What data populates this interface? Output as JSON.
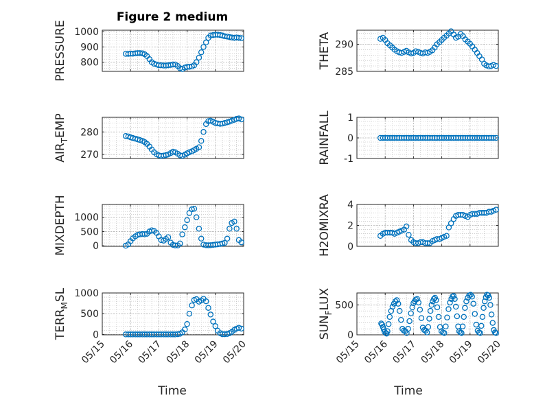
{
  "figure": {
    "title": "Figure 2 medium",
    "xlabel": "Time"
  },
  "colors": {
    "marker": "#0072BD",
    "axis": "#262626",
    "grid": "#b8b8b8"
  },
  "chart_data": [
    {
      "id": "pressure",
      "type": "scatter",
      "title": "Figure 2 medium",
      "ylabel": "PRESSURE",
      "ylabel_parts": [],
      "ylim": [
        740,
        1010
      ],
      "yticks": [
        800,
        900,
        1000
      ],
      "ytick_labels": [
        "800",
        "900",
        "1000"
      ],
      "xlim": [
        0,
        5
      ],
      "xticks": [
        0,
        1,
        2,
        3,
        4,
        5
      ],
      "xtick_labels": [],
      "x": [
        0.83,
        0.92,
        1.0,
        1.08,
        1.17,
        1.25,
        1.33,
        1.42,
        1.5,
        1.58,
        1.67,
        1.75,
        1.83,
        1.92,
        2.0,
        2.08,
        2.17,
        2.25,
        2.33,
        2.42,
        2.5,
        2.58,
        2.67,
        2.75,
        2.83,
        2.92,
        3.0,
        3.08,
        3.17,
        3.25,
        3.33,
        3.42,
        3.5,
        3.58,
        3.67,
        3.75,
        3.83,
        3.92,
        4.0,
        4.08,
        4.17,
        4.25,
        4.33,
        4.42,
        4.5,
        4.58,
        4.67,
        4.75,
        4.83,
        4.92
      ],
      "y": [
        855,
        855,
        856,
        856,
        858,
        860,
        860,
        858,
        852,
        840,
        820,
        800,
        790,
        785,
        780,
        780,
        778,
        778,
        780,
        782,
        785,
        785,
        775,
        760,
        755,
        765,
        770,
        770,
        772,
        780,
        800,
        830,
        865,
        900,
        930,
        960,
        975,
        978,
        980,
        980,
        978,
        975,
        970,
        968,
        965,
        962,
        960,
        962,
        960,
        958
      ]
    },
    {
      "id": "theta",
      "type": "scatter",
      "ylabel": "THETA",
      "ylabel_parts": [],
      "ylim": [
        285,
        292.6
      ],
      "yticks": [
        285,
        290
      ],
      "ytick_labels": [
        "285",
        "290"
      ],
      "xlim": [
        0,
        5
      ],
      "xticks": [
        0,
        1,
        2,
        3,
        4,
        5
      ],
      "xtick_labels": [],
      "x": [
        0.83,
        0.92,
        1.0,
        1.08,
        1.17,
        1.25,
        1.33,
        1.42,
        1.5,
        1.58,
        1.67,
        1.75,
        1.83,
        1.92,
        2.0,
        2.08,
        2.17,
        2.25,
        2.33,
        2.42,
        2.5,
        2.58,
        2.67,
        2.75,
        2.83,
        2.92,
        3.0,
        3.08,
        3.17,
        3.25,
        3.33,
        3.42,
        3.5,
        3.58,
        3.67,
        3.75,
        3.83,
        3.92,
        4.0,
        4.08,
        4.17,
        4.25,
        4.33,
        4.42,
        4.5,
        4.58,
        4.67,
        4.75,
        4.83,
        4.92
      ],
      "y": [
        291,
        291.2,
        290.8,
        290.2,
        289.8,
        289.4,
        289.0,
        288.7,
        288.5,
        288.4,
        288.6,
        288.8,
        288.5,
        288.3,
        288.4,
        288.7,
        288.6,
        288.4,
        288.3,
        288.5,
        288.4,
        288.6,
        288.9,
        289.4,
        290.0,
        290.4,
        290.8,
        291.2,
        291.6,
        292.0,
        292.4,
        291.8,
        291.2,
        291.4,
        291.9,
        291.5,
        290.9,
        290.5,
        290.1,
        289.6,
        289.0,
        288.4,
        287.8,
        287.2,
        286.4,
        286.1,
        285.9,
        286.0,
        286.2,
        286.0
      ]
    },
    {
      "id": "air_temp",
      "type": "scatter",
      "ylabel": "AIR_TEMP",
      "ylabel_parts": [
        "AIR",
        "T",
        "EMP"
      ],
      "ylim": [
        268.2,
        286.5
      ],
      "yticks": [
        270,
        280
      ],
      "ytick_labels": [
        "270",
        "280"
      ],
      "xlim": [
        0,
        5
      ],
      "xticks": [
        0,
        1,
        2,
        3,
        4,
        5
      ],
      "xtick_labels": [],
      "x": [
        0.83,
        0.92,
        1.0,
        1.08,
        1.17,
        1.25,
        1.33,
        1.42,
        1.5,
        1.58,
        1.67,
        1.75,
        1.83,
        1.92,
        2.0,
        2.08,
        2.17,
        2.25,
        2.33,
        2.42,
        2.5,
        2.58,
        2.67,
        2.75,
        2.83,
        2.92,
        3.0,
        3.08,
        3.17,
        3.25,
        3.33,
        3.42,
        3.5,
        3.58,
        3.67,
        3.75,
        3.83,
        3.92,
        4.0,
        4.08,
        4.17,
        4.25,
        4.33,
        4.42,
        4.5,
        4.58,
        4.67,
        4.75,
        4.83,
        4.92
      ],
      "y": [
        278.2,
        278.0,
        277.6,
        277.3,
        277.0,
        276.7,
        276.4,
        276.0,
        275.5,
        274.7,
        273.5,
        272.2,
        271.0,
        270.1,
        269.6,
        269.4,
        269.5,
        269.7,
        270.0,
        270.6,
        271.2,
        271.0,
        270.3,
        269.6,
        269.4,
        269.9,
        270.5,
        271.0,
        271.4,
        271.9,
        272.5,
        273.2,
        276.0,
        280.0,
        283.5,
        284.8,
        285.0,
        284.5,
        284.0,
        283.8,
        283.6,
        283.7,
        284.0,
        284.3,
        284.6,
        285.0,
        285.4,
        285.8,
        286.0,
        285.6
      ]
    },
    {
      "id": "rainfall",
      "type": "scatter",
      "ylabel": "RAINFALL",
      "ylabel_parts": [],
      "ylim": [
        -1,
        1
      ],
      "yticks": [
        -1,
        0,
        1
      ],
      "ytick_labels": [
        "-1",
        "0",
        "1"
      ],
      "xlim": [
        0,
        5
      ],
      "xticks": [
        0,
        1,
        2,
        3,
        4,
        5
      ],
      "xtick_labels": [],
      "x": [
        0.83,
        0.92,
        1.0,
        1.08,
        1.17,
        1.25,
        1.33,
        1.42,
        1.5,
        1.58,
        1.67,
        1.75,
        1.83,
        1.92,
        2.0,
        2.08,
        2.17,
        2.25,
        2.33,
        2.42,
        2.5,
        2.58,
        2.67,
        2.75,
        2.83,
        2.92,
        3.0,
        3.08,
        3.17,
        3.25,
        3.33,
        3.42,
        3.5,
        3.58,
        3.67,
        3.75,
        3.83,
        3.92,
        4.0,
        4.08,
        4.17,
        4.25,
        4.33,
        4.42,
        4.5,
        4.58,
        4.67,
        4.75,
        4.83,
        4.92
      ],
      "y": [
        0,
        0,
        0,
        0,
        0,
        0,
        0,
        0,
        0,
        0,
        0,
        0,
        0,
        0,
        0,
        0,
        0,
        0,
        0,
        0,
        0,
        0,
        0,
        0,
        0,
        0,
        0,
        0,
        0,
        0,
        0,
        0,
        0,
        0,
        0,
        0,
        0,
        0,
        0,
        0,
        0,
        0,
        0,
        0,
        0,
        0,
        0,
        0,
        0,
        0
      ]
    },
    {
      "id": "mixdepth",
      "type": "scatter",
      "ylabel": "MIXDEPTH",
      "ylabel_parts": [],
      "ylim": [
        -20,
        1450
      ],
      "yticks": [
        0,
        500,
        1000
      ],
      "ytick_labels": [
        "0",
        "500",
        "1000"
      ],
      "xlim": [
        0,
        5
      ],
      "xticks": [
        0,
        1,
        2,
        3,
        4,
        5
      ],
      "xtick_labels": [],
      "x": [
        0.83,
        0.92,
        1.0,
        1.08,
        1.17,
        1.25,
        1.33,
        1.42,
        1.5,
        1.58,
        1.67,
        1.75,
        1.83,
        1.92,
        2.0,
        2.08,
        2.17,
        2.25,
        2.33,
        2.42,
        2.5,
        2.58,
        2.67,
        2.75,
        2.83,
        2.92,
        3.0,
        3.08,
        3.17,
        3.25,
        3.33,
        3.42,
        3.5,
        3.58,
        3.67,
        3.75,
        3.83,
        3.92,
        4.0,
        4.08,
        4.17,
        4.25,
        4.33,
        4.42,
        4.5,
        4.58,
        4.67,
        4.75,
        4.83,
        4.92
      ],
      "y": [
        0,
        50,
        160,
        260,
        330,
        380,
        400,
        410,
        405,
        420,
        500,
        540,
        520,
        450,
        330,
        200,
        180,
        240,
        300,
        110,
        30,
        10,
        10,
        80,
        400,
        650,
        900,
        1150,
        1280,
        1300,
        1000,
        600,
        250,
        40,
        20,
        15,
        20,
        30,
        40,
        50,
        60,
        80,
        100,
        250,
        600,
        800,
        850,
        600,
        200,
        120
      ]
    },
    {
      "id": "h2omixra",
      "type": "scatter",
      "ylabel": "H2OMIXRA",
      "ylabel_parts": [],
      "ylim": [
        0,
        4
      ],
      "yticks": [
        0,
        2,
        4
      ],
      "ytick_labels": [
        "0",
        "2",
        "4"
      ],
      "xlim": [
        0,
        5
      ],
      "xticks": [
        0,
        1,
        2,
        3,
        4,
        5
      ],
      "xtick_labels": [],
      "x": [
        0.83,
        0.92,
        1.0,
        1.08,
        1.17,
        1.25,
        1.33,
        1.42,
        1.5,
        1.58,
        1.67,
        1.75,
        1.83,
        1.92,
        2.0,
        2.08,
        2.17,
        2.25,
        2.33,
        2.42,
        2.5,
        2.58,
        2.67,
        2.75,
        2.83,
        2.92,
        3.0,
        3.08,
        3.17,
        3.25,
        3.33,
        3.42,
        3.5,
        3.58,
        3.67,
        3.75,
        3.83,
        3.92,
        4.0,
        4.08,
        4.17,
        4.25,
        4.33,
        4.42,
        4.5,
        4.58,
        4.67,
        4.75,
        4.83,
        4.92
      ],
      "y": [
        1.0,
        1.2,
        1.3,
        1.3,
        1.3,
        1.3,
        1.2,
        1.3,
        1.4,
        1.5,
        1.6,
        1.9,
        1.1,
        0.6,
        0.4,
        0.3,
        0.3,
        0.4,
        0.4,
        0.3,
        0.3,
        0.3,
        0.5,
        0.6,
        0.7,
        0.7,
        0.8,
        0.9,
        1.0,
        1.8,
        2.2,
        2.6,
        2.9,
        3.0,
        3.0,
        3.0,
        2.9,
        2.8,
        3.0,
        3.1,
        3.1,
        3.1,
        3.2,
        3.2,
        3.2,
        3.2,
        3.3,
        3.3,
        3.4,
        3.5
      ]
    },
    {
      "id": "terr_msl",
      "type": "scatter",
      "ylabel": "TERR_MSL",
      "ylabel_parts": [
        "TERR",
        "M",
        "SL"
      ],
      "ylim": [
        -10,
        1000
      ],
      "yticks": [
        0,
        500,
        1000
      ],
      "ytick_labels": [
        "0",
        "500",
        "1000"
      ],
      "xlim": [
        0,
        5
      ],
      "xticks": [
        0,
        1,
        2,
        3,
        4,
        5
      ],
      "xtick_labels": [
        "05/15",
        "05/16",
        "05/17",
        "05/18",
        "05/19",
        "05/20"
      ],
      "x": [
        0.83,
        0.92,
        1.0,
        1.08,
        1.17,
        1.25,
        1.33,
        1.42,
        1.5,
        1.58,
        1.67,
        1.75,
        1.83,
        1.92,
        2.0,
        2.08,
        2.17,
        2.25,
        2.33,
        2.42,
        2.5,
        2.58,
        2.67,
        2.75,
        2.83,
        2.92,
        3.0,
        3.08,
        3.17,
        3.25,
        3.33,
        3.42,
        3.5,
        3.58,
        3.67,
        3.75,
        3.83,
        3.92,
        4.0,
        4.08,
        4.17,
        4.25,
        4.33,
        4.42,
        4.5,
        4.58,
        4.67,
        4.75,
        4.83,
        4.92
      ],
      "y": [
        0,
        0,
        0,
        0,
        0,
        0,
        0,
        0,
        0,
        0,
        0,
        0,
        0,
        0,
        0,
        0,
        0,
        0,
        0,
        0,
        0,
        0,
        5,
        15,
        50,
        120,
        250,
        500,
        700,
        830,
        850,
        790,
        820,
        860,
        800,
        640,
        480,
        310,
        200,
        90,
        30,
        5,
        5,
        10,
        30,
        60,
        110,
        140,
        160,
        140
      ]
    },
    {
      "id": "sun_flux",
      "type": "scatter",
      "ylabel": "SUN_FLUX",
      "ylabel_parts": [
        "SUN",
        "F",
        "LUX"
      ],
      "ylim": [
        0,
        700
      ],
      "yticks": [
        0,
        500
      ],
      "ytick_labels": [
        "0",
        "500"
      ],
      "xlim": [
        0,
        5
      ],
      "xticks": [
        0,
        1,
        2,
        3,
        4,
        5
      ],
      "xtick_labels": [
        "05/15",
        "05/16",
        "05/17",
        "05/18",
        "05/19",
        "05/20"
      ],
      "x": [
        0.86,
        0.89,
        0.92,
        0.95,
        0.98,
        1.02,
        1.05,
        1.08,
        1.12,
        1.16,
        1.21,
        1.26,
        1.31,
        1.36,
        1.41,
        1.46,
        1.51,
        1.56,
        1.61,
        1.66,
        1.71,
        1.76,
        1.81,
        1.86,
        1.91,
        1.96,
        2.0,
        2.04,
        2.08,
        2.13,
        2.18,
        2.23,
        2.28,
        2.33,
        2.38,
        2.43,
        2.48,
        2.52,
        2.56,
        2.6,
        2.64,
        2.68,
        2.72,
        2.76,
        2.8,
        2.84,
        2.89,
        2.94,
        2.99,
        3.04,
        3.09,
        3.14,
        3.19,
        3.24,
        3.29,
        3.34,
        3.38,
        3.42,
        3.46,
        3.5,
        3.54,
        3.58,
        3.62,
        3.66,
        3.7,
        3.74,
        3.78,
        3.82,
        3.87,
        3.92,
        3.97,
        4.02,
        4.07,
        4.12,
        4.17,
        4.22,
        4.27,
        4.32,
        4.36,
        4.4,
        4.44,
        4.48,
        4.52,
        4.56,
        4.6,
        4.64,
        4.68,
        4.72,
        4.76,
        4.8,
        4.84,
        4.88,
        4.92
      ],
      "y": [
        190,
        170,
        130,
        90,
        50,
        30,
        20,
        60,
        180,
        300,
        400,
        470,
        520,
        560,
        580,
        520,
        400,
        250,
        100,
        70,
        60,
        30,
        100,
        230,
        360,
        460,
        530,
        560,
        590,
        600,
        540,
        420,
        280,
        120,
        80,
        70,
        40,
        130,
        270,
        400,
        500,
        560,
        600,
        620,
        580,
        460,
        300,
        130,
        60,
        40,
        30,
        140,
        290,
        430,
        540,
        600,
        640,
        650,
        600,
        470,
        310,
        140,
        60,
        40,
        30,
        140,
        300,
        450,
        560,
        620,
        660,
        670,
        640,
        520,
        350,
        170,
        70,
        40,
        30,
        150,
        300,
        450,
        560,
        630,
        670,
        660,
        620,
        500,
        340,
        200,
        80,
        40,
        30
      ]
    }
  ]
}
